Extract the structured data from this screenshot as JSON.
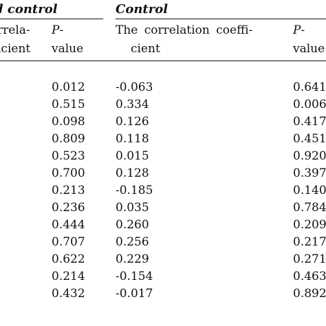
{
  "headers": {
    "left_group": "d control",
    "right_group": "Control"
  },
  "subheaders": {
    "col_a_line1": "rrela-",
    "col_a_line2": "icient",
    "col_b_line1_italic": "P",
    "col_b_line1_rest": "-",
    "col_b_line2": "value",
    "col_c_line1": "The correlation coeffi-",
    "col_c_line2": "cient",
    "col_d_line1_italic": "P",
    "col_d_line1_rest": "-",
    "col_d_line2": "value"
  },
  "rows": [
    {
      "p_left": "0.012",
      "corr_right": "-0.063",
      "p_right": "0.641"
    },
    {
      "p_left": "0.515",
      "corr_right": "0.334",
      "p_right": "0.006"
    },
    {
      "p_left": "0.098",
      "corr_right": "0.126",
      "p_right": "0.417"
    },
    {
      "p_left": "0.809",
      "corr_right": "0.118",
      "p_right": "0.451"
    },
    {
      "p_left": "0.523",
      "corr_right": "0.015",
      "p_right": "0.920"
    },
    {
      "p_left": "0.700",
      "corr_right": "0.128",
      "p_right": "0.397"
    },
    {
      "p_left": "0.213",
      "corr_right": "-0.185",
      "p_right": "0.140"
    },
    {
      "p_left": "0.236",
      "corr_right": "0.035",
      "p_right": "0.784"
    },
    {
      "p_left": "0.444",
      "corr_right": "0.260",
      "p_right": "0.209"
    },
    {
      "p_left": "0.707",
      "corr_right": "0.256",
      "p_right": "0.217"
    },
    {
      "p_left": "0.622",
      "corr_right": "0.229",
      "p_right": "0.271"
    },
    {
      "p_left": "0.214",
      "corr_right": "-0.154",
      "p_right": "0.463"
    },
    {
      "p_left": "0.432",
      "corr_right": "-0.017",
      "p_right": "0.892"
    }
  ]
}
